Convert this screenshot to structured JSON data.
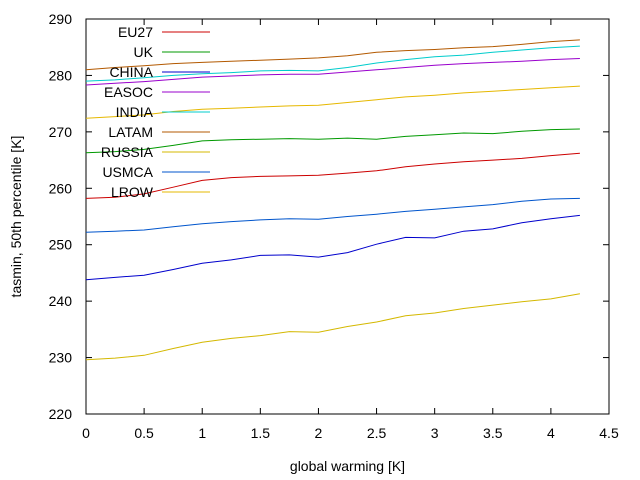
{
  "chart_data": {
    "type": "line",
    "title": "",
    "xlabel": "global warming [K]",
    "ylabel": "tasmin, 50th percentile [K]",
    "xlim": [
      0,
      4.5
    ],
    "ylim": [
      220,
      290
    ],
    "xticks": [
      0,
      0.5,
      1,
      1.5,
      2,
      2.5,
      3,
      3.5,
      4,
      4.5
    ],
    "xtick_labels": [
      "0",
      "0.5",
      "1",
      "1.5",
      "2",
      "2.5",
      "3",
      "3.5",
      "4",
      "4.5"
    ],
    "yticks": [
      220,
      230,
      240,
      250,
      260,
      270,
      280,
      290
    ],
    "ytick_labels": [
      "220",
      "230",
      "240",
      "250",
      "260",
      "270",
      "280",
      "290"
    ],
    "grid": false,
    "legend_position": "top-left",
    "x": [
      0,
      0.25,
      0.5,
      0.75,
      1,
      1.25,
      1.5,
      1.75,
      2,
      2.25,
      2.5,
      2.75,
      3,
      3.25,
      3.5,
      3.75,
      4,
      4.25
    ],
    "series": [
      {
        "name": "EU27",
        "color": "#cc0000",
        "values": [
          258.2,
          258.4,
          259.0,
          260.2,
          261.4,
          261.9,
          262.1,
          262.2,
          262.3,
          262.7,
          263.1,
          263.8,
          264.3,
          264.7,
          265.0,
          265.3,
          265.8,
          266.2
        ]
      },
      {
        "name": "UK",
        "color": "#009900",
        "values": [
          266.3,
          266.5,
          266.9,
          267.6,
          268.4,
          268.6,
          268.7,
          268.8,
          268.7,
          268.9,
          268.7,
          269.2,
          269.5,
          269.8,
          269.7,
          270.1,
          270.4,
          270.5
        ]
      },
      {
        "name": "CHINA",
        "color": "#0000cc",
        "values": [
          243.8,
          244.2,
          244.6,
          245.6,
          246.7,
          247.3,
          248.1,
          248.2,
          247.8,
          248.6,
          250.1,
          251.3,
          251.2,
          252.4,
          252.8,
          253.9,
          254.6,
          255.2
        ]
      },
      {
        "name": "EASOC",
        "color": "#9900cc",
        "values": [
          278.3,
          278.6,
          278.9,
          279.3,
          279.7,
          279.9,
          280.1,
          280.2,
          280.2,
          280.6,
          281.0,
          281.4,
          281.8,
          282.1,
          282.3,
          282.5,
          282.8,
          283.0
        ]
      },
      {
        "name": "INDIA",
        "color": "#00cccc",
        "values": [
          279.0,
          279.2,
          279.6,
          280.0,
          280.3,
          280.5,
          280.8,
          280.9,
          280.8,
          281.4,
          282.2,
          282.8,
          283.3,
          283.6,
          284.1,
          284.5,
          284.9,
          285.2
        ]
      },
      {
        "name": "LATAM",
        "color": "#b35900",
        "values": [
          281.0,
          281.4,
          281.7,
          282.1,
          282.3,
          282.5,
          282.7,
          282.9,
          283.1,
          283.5,
          284.1,
          284.4,
          284.6,
          284.9,
          285.1,
          285.5,
          286.0,
          286.3
        ]
      },
      {
        "name": "RUSSIA",
        "color": "#d4b800",
        "values": [
          229.6,
          229.9,
          230.4,
          231.6,
          232.7,
          233.4,
          233.9,
          234.6,
          234.5,
          235.5,
          236.3,
          237.4,
          237.9,
          238.7,
          239.3,
          239.9,
          240.4,
          241.3
        ]
      },
      {
        "name": "USMCA",
        "color": "#0055cc",
        "values": [
          252.2,
          252.4,
          252.6,
          253.2,
          253.7,
          254.1,
          254.4,
          254.6,
          254.5,
          255.0,
          255.4,
          255.9,
          256.3,
          256.7,
          257.1,
          257.7,
          258.1,
          258.2
        ]
      },
      {
        "name": "LROW",
        "color": "#e6b800",
        "values": [
          272.4,
          272.7,
          273.0,
          273.6,
          274.0,
          274.2,
          274.4,
          274.6,
          274.7,
          275.2,
          275.7,
          276.2,
          276.5,
          276.9,
          277.2,
          277.5,
          277.8,
          278.1
        ]
      }
    ]
  }
}
